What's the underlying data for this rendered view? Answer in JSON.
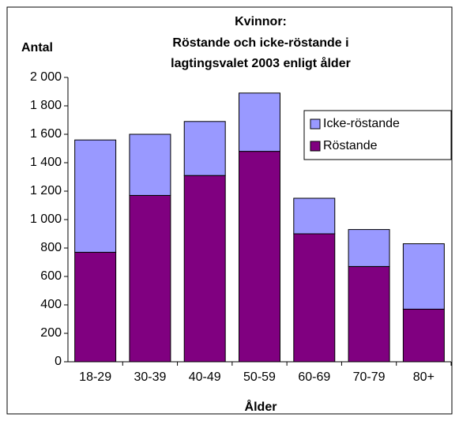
{
  "chart_data": {
    "type": "stacked_bar",
    "title": [
      "Kvinnor:",
      "Röstande och icke-röstande i",
      "lagtingsvalet 2003 enligt ålder"
    ],
    "y_label": "Antal",
    "x_label": "Ålder",
    "categories": [
      "18-29",
      "30-39",
      "40-49",
      "50-59",
      "60-69",
      "70-79",
      "80+"
    ],
    "series": [
      {
        "name": "Röstande",
        "color": "#800080",
        "values": [
          770,
          1170,
          1310,
          1480,
          900,
          670,
          370
        ]
      },
      {
        "name": "Icke-röstande",
        "color": "#9999ff",
        "values": [
          790,
          430,
          380,
          410,
          250,
          260,
          460
        ]
      }
    ],
    "ylim": [
      0,
      2000
    ],
    "yticks": [
      0,
      200,
      400,
      600,
      800,
      {
        "value": 1000,
        "label": "1 000"
      },
      {
        "value": 1200,
        "label": "1 200"
      },
      {
        "value": 1400,
        "label": "1 400"
      },
      {
        "value": 1600,
        "label": "1 600"
      },
      {
        "value": 1800,
        "label": "1 800"
      },
      {
        "value": 2000,
        "label": "2 000"
      }
    ],
    "grid": false,
    "legend": "upper right"
  }
}
